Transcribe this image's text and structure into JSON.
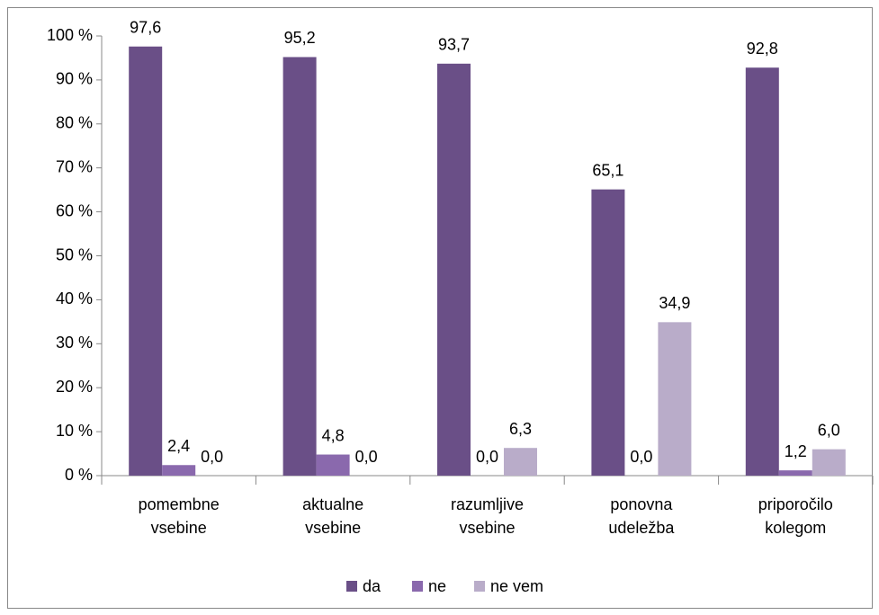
{
  "chart_data": {
    "type": "bar",
    "categories": [
      [
        "pomembne",
        "vsebine"
      ],
      [
        "aktualne",
        "vsebine"
      ],
      [
        "razumljive",
        "vsebine"
      ],
      [
        "ponovna",
        "udeležba"
      ],
      [
        "priporočilo",
        "kolegom"
      ]
    ],
    "series": [
      {
        "name": "da",
        "color": "#6a4f87",
        "values": [
          97.6,
          95.2,
          93.7,
          65.1,
          92.8
        ],
        "value_labels": [
          "97,6",
          "95,2",
          "93,7",
          "65,1",
          "92,8"
        ]
      },
      {
        "name": "ne",
        "color": "#8a69ad",
        "values": [
          2.4,
          4.8,
          0.0,
          0.0,
          1.2
        ],
        "value_labels": [
          "2,4",
          "4,8",
          "0,0",
          "0,0",
          "1,2"
        ]
      },
      {
        "name": "ne vem",
        "color": "#b9acc9",
        "values": [
          0.0,
          0.0,
          6.3,
          34.9,
          6.0
        ],
        "value_labels": [
          "0,0",
          "0,0",
          "6,3",
          "34,9",
          "6,0"
        ]
      }
    ],
    "ylim": [
      0,
      100
    ],
    "yticks": [
      {
        "value": 0,
        "label": "0 %"
      },
      {
        "value": 10,
        "label": "10 %"
      },
      {
        "value": 20,
        "label": "20 %"
      },
      {
        "value": 30,
        "label": "30 %"
      },
      {
        "value": 40,
        "label": "40 %"
      },
      {
        "value": 50,
        "label": "50 %"
      },
      {
        "value": 60,
        "label": "60 %"
      },
      {
        "value": 70,
        "label": "70 %"
      },
      {
        "value": 80,
        "label": "80 %"
      },
      {
        "value": 90,
        "label": "90 %"
      },
      {
        "value": 100,
        "label": "100 %"
      }
    ],
    "legend": "bottom"
  }
}
